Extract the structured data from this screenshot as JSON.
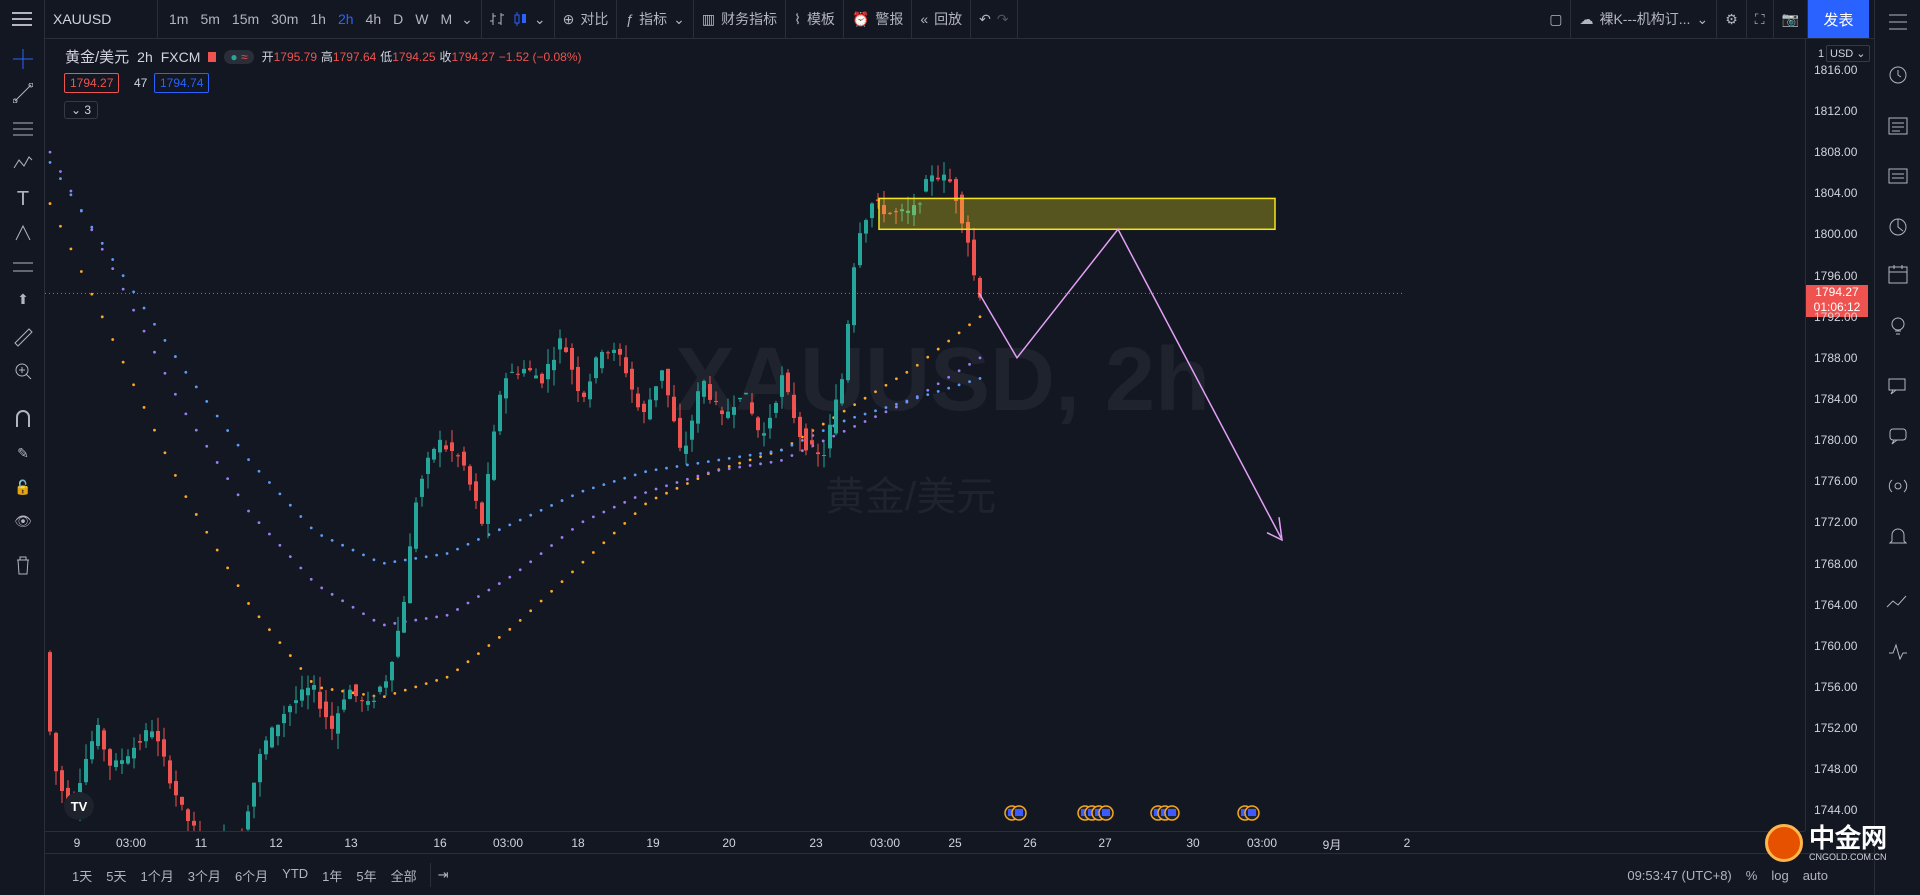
{
  "toolbar": {
    "symbol": "XAUUSD",
    "intervals": [
      "1m",
      "5m",
      "15m",
      "30m",
      "1h",
      "2h",
      "4h",
      "D",
      "W",
      "M"
    ],
    "active_interval": "2h",
    "compare": "对比",
    "indicators": "指标",
    "financials": "财务指标",
    "templates": "模板",
    "alerts": "警报",
    "replay": "回放",
    "layout_name": "裸K---机构订...",
    "publish": "发表"
  },
  "legend": {
    "name": "黄金/美元",
    "interval": "2h",
    "source": "FXCM",
    "open_label": "开",
    "open": "1795.79",
    "high_label": "高",
    "high": "1797.64",
    "low_label": "低",
    "low": "1794.25",
    "close_label": "收",
    "close": "1794.27",
    "change": "−1.52 (−0.08%)",
    "bid": "1794.27",
    "spread": "47",
    "ask": "1794.74",
    "collapsed_count": "3"
  },
  "watermark": {
    "symbol": "XAUUSD, 2h",
    "name": "黄金/美元"
  },
  "price_axis": {
    "currency": "USD",
    "top_label": "1",
    "labels": [
      "1816.00",
      "1812.00",
      "1808.00",
      "1804.00",
      "1800.00",
      "1796.00",
      "1792.00",
      "1788.00",
      "1784.00",
      "1780.00",
      "1776.00",
      "1772.00",
      "1768.00",
      "1764.00",
      "1760.00",
      "1756.00",
      "1752.00",
      "1748.00",
      "1744.00"
    ],
    "current_price": "1794.27",
    "countdown": "01:06:12"
  },
  "time_axis": [
    "9",
    "03:00",
    "11",
    "12",
    "13",
    "16",
    "03:00",
    "18",
    "19",
    "20",
    "23",
    "03:00",
    "25",
    "26",
    "27",
    "30",
    "03:00",
    "9月",
    "2"
  ],
  "bottom": {
    "ranges": [
      "1天",
      "5天",
      "1个月",
      "3个月",
      "6个月",
      "YTD",
      "1年",
      "5年",
      "全部"
    ],
    "clock": "09:53:47 (UTC+8)",
    "right_items": [
      "%",
      "log",
      "auto"
    ]
  },
  "logo": {
    "text": "中金网",
    "sub": "CNGOLD.COM.CN"
  },
  "colors": {
    "up": "#26a69a",
    "down": "#ef5350",
    "accent": "#2962ff",
    "zone": "#f5e51a",
    "projection": "#e39ff6"
  },
  "chart_data": {
    "type": "candlestick",
    "ylim": [
      1742,
      1819
    ],
    "current_price": 1794.27,
    "zone": {
      "low": 1800.5,
      "high": 1803.5
    },
    "ma": [
      {
        "color": "#ffa726",
        "values": [
          1803,
          1789,
          1775,
          1764,
          1756,
          1755,
          1757,
          1762,
          1768,
          1774,
          1777,
          1779,
          1783,
          1787,
          1792
        ]
      },
      {
        "color": "#9c7cf4",
        "values": [
          1808,
          1796,
          1783,
          1773,
          1766,
          1762,
          1763,
          1767,
          1772,
          1775,
          1777,
          1778,
          1781,
          1784,
          1788
        ]
      },
      {
        "color": "#5b9cf6",
        "values": [
          1807,
          1797,
          1787,
          1778,
          1771,
          1768,
          1769,
          1772,
          1775,
          1777,
          1778,
          1779,
          1782,
          1784,
          1786
        ]
      }
    ]
  }
}
